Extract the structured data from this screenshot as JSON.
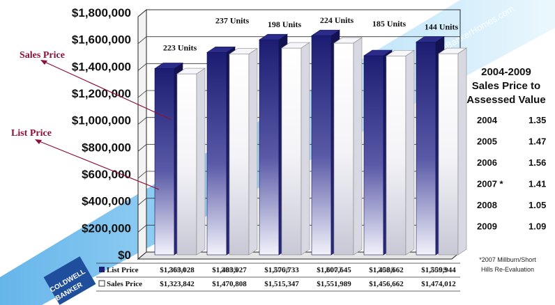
{
  "chart_data": {
    "type": "bar",
    "categories": [
      "2004",
      "2005",
      "2006",
      "2007",
      "2008",
      "2009"
    ],
    "series": [
      {
        "name": "List Price",
        "values": [
          1363028,
          1483027,
          1576733,
          1607645,
          1458662,
          1559944
        ],
        "labels": [
          "$1,363,028",
          "$1,483,027",
          "$1,576,733",
          "$1,607,645",
          "$1,458,662",
          "$1,559,944"
        ]
      },
      {
        "name": "Sales Price",
        "values": [
          1323842,
          1470808,
          1515347,
          1551989,
          1456662,
          1474012
        ],
        "labels": [
          "$1,323,842",
          "$1,470,808",
          "$1,515,347",
          "$1,551,989",
          "$1,456,662",
          "$1,474,012"
        ]
      }
    ],
    "units_labels": [
      "223 Units",
      "237 Units",
      "198 Units",
      "224 Units",
      "185 Units",
      "144 Units"
    ],
    "ylim": [
      0,
      1800000
    ],
    "yticks": [
      0,
      200000,
      400000,
      600000,
      800000,
      1000000,
      1200000,
      1400000,
      1600000,
      1800000
    ],
    "ytick_labels": [
      "$0",
      "$200,000",
      "$400,000",
      "$600,000",
      "$800,000",
      "$1,000,000",
      "$1,200,000",
      "$1,400,000",
      "$1,600,000",
      "$1,800,000"
    ],
    "grid": true,
    "legend": "table-below",
    "colors": {
      "list_price": "#1f1f7a",
      "sales_price": "#ffffff",
      "annotation": "#8b0f3a",
      "banner": "#5fb7ea"
    }
  },
  "annotations": {
    "sales_price": "Sales Price",
    "list_price": "List Price"
  },
  "side_table": {
    "title_lines": [
      "2004-2009",
      "Sales Price to",
      "Assessed Value"
    ],
    "rows": [
      {
        "year": "2004",
        "value": "1.35"
      },
      {
        "year": "2005",
        "value": "1.47"
      },
      {
        "year": "2006",
        "value": "1.56"
      },
      {
        "year": "2007 *",
        "value": "1.41"
      },
      {
        "year": "2008",
        "value": "1.05"
      },
      {
        "year": "2009",
        "value": "1.09"
      }
    ],
    "footnote_lines": [
      "*2007 Millburn/Short",
      "Hills Re-Evaluation"
    ]
  },
  "watermark": {
    "logo_line1": "COLDWELL",
    "logo_line2": "BANKER",
    "site_text": "ColdwellBankerHomes.com"
  }
}
